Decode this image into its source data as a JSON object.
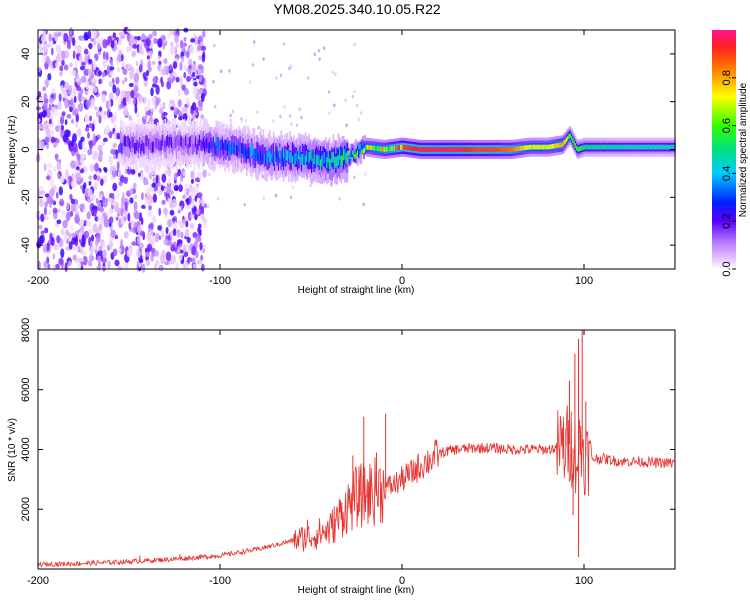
{
  "chart_data": [
    {
      "type": "heatmap",
      "title": "YM08.2025.340.10.05.R22",
      "xlabel": "Height of straight line (km)",
      "ylabel": "Frequency (Hz)",
      "xlim": [
        -200,
        150
      ],
      "ylim": [
        -50,
        50
      ],
      "xticks": [
        -200,
        -100,
        0,
        100
      ],
      "xtick_labels": [
        "-200",
        "-100",
        "0",
        "100"
      ],
      "yticks": [
        -40,
        -20,
        0,
        20,
        40
      ],
      "ytick_labels": [
        "-40",
        "-20",
        "0",
        "20",
        "40"
      ],
      "colorbar": {
        "label": "Normalized spectral amplitude",
        "range": [
          0,
          1
        ],
        "ticks": [
          0,
          0.2,
          0.4,
          0.6,
          0.8
        ],
        "tick_labels": [
          "0.0",
          "0.2",
          "0.4",
          "0.6",
          "0.8"
        ]
      },
      "ridge": {
        "x": [
          -110,
          -100,
          -90,
          -80,
          -70,
          -60,
          -50,
          -40,
          -30,
          -20,
          -10,
          0,
          10,
          20,
          30,
          40,
          50,
          60,
          70,
          80,
          88,
          92,
          96,
          100,
          120,
          150
        ],
        "y": [
          2,
          1,
          0,
          -2,
          -3,
          -3,
          -4,
          -5,
          -3,
          1,
          0,
          1,
          0,
          0,
          0,
          0,
          0,
          0,
          1,
          1,
          2,
          6,
          0,
          1,
          1,
          1
        ],
        "amplitude": [
          0.3,
          0.35,
          0.35,
          0.4,
          0.4,
          0.45,
          0.5,
          0.55,
          0.6,
          0.7,
          0.8,
          0.9,
          0.95,
          0.97,
          0.97,
          0.9,
          0.9,
          0.85,
          0.7,
          0.7,
          0.8,
          0.6,
          0.6,
          0.5,
          0.45,
          0.45
        ]
      },
      "noise_region": [
        -200,
        -108
      ]
    },
    {
      "type": "line",
      "xlabel": "Height of straight line (km)",
      "ylabel": "SNR (10 * v/v)",
      "xlim": [
        -200,
        150
      ],
      "ylim": [
        0,
        8000
      ],
      "xticks": [
        -200,
        -100,
        0,
        100
      ],
      "xtick_labels": [
        "-200",
        "-100",
        "0",
        "100"
      ],
      "yticks": [
        2000,
        4000,
        6000,
        8000
      ],
      "ytick_labels": [
        "2000",
        "4000",
        "6000",
        "8000"
      ],
      "color": "#e8302c",
      "series": [
        {
          "name": "SNR",
          "x": [
            -200,
            -180,
            -160,
            -140,
            -120,
            -100,
            -90,
            -80,
            -70,
            -60,
            -50,
            -40,
            -35,
            -30,
            -25,
            -20,
            -15,
            -10,
            -5,
            0,
            5,
            10,
            15,
            20,
            25,
            30,
            40,
            50,
            60,
            70,
            80,
            85,
            90,
            93,
            96,
            98,
            100,
            103,
            110,
            120,
            130,
            140,
            150
          ],
          "y": [
            150,
            180,
            220,
            280,
            350,
            450,
            550,
            650,
            800,
            950,
            1100,
            1300,
            1700,
            2100,
            2400,
            2500,
            2600,
            2700,
            2800,
            3000,
            3200,
            3450,
            3650,
            3850,
            3950,
            4000,
            4050,
            4050,
            4000,
            4000,
            4000,
            4050,
            4100,
            4200,
            3700,
            4300,
            3800,
            3700,
            3700,
            3600,
            3600,
            3550,
            3550
          ],
          "spikes": [
            {
              "x": -144,
              "y": 450
            },
            {
              "x": -122,
              "y": 500
            },
            {
              "x": -52,
              "y": 1650
            },
            {
              "x": -27,
              "y": 3800
            },
            {
              "x": -23,
              "y": 3000
            },
            {
              "x": -21,
              "y": 5100
            },
            {
              "x": -14,
              "y": 3900
            },
            {
              "x": -9,
              "y": 5200
            },
            {
              "x": 90,
              "y": 4700
            },
            {
              "x": 92,
              "y": 6300
            },
            {
              "x": 95,
              "y": 7200
            },
            {
              "x": 97,
              "y": 7700
            },
            {
              "x": 99,
              "y": 8000
            },
            {
              "x": 97,
              "y": 400
            },
            {
              "x": 101,
              "y": 5600
            },
            {
              "x": 94,
              "y": 1800
            }
          ]
        }
      ]
    }
  ]
}
